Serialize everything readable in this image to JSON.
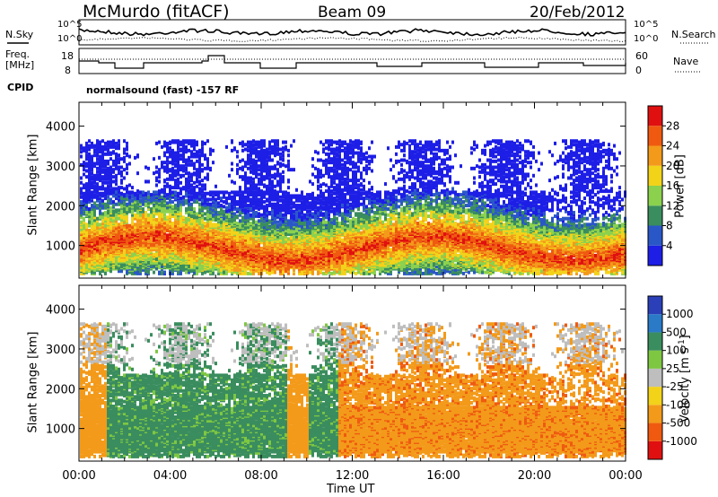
{
  "header": {
    "station": "McMurdo (fitACF)",
    "beam": "Beam 09",
    "date": "20/Feb/2012"
  },
  "top_panel": {
    "left_label": "N.Sky",
    "left_ticks": [
      "10^5",
      "10^0"
    ],
    "right_label": "N.Search",
    "right_ticks": [
      "10^5",
      "10^0"
    ]
  },
  "freq_panel": {
    "left_label_1": "Freq.",
    "left_label_2": "[MHz]",
    "left_ticks": [
      "18",
      "8"
    ],
    "right_label": "Nave",
    "right_ticks": [
      "60",
      "0"
    ]
  },
  "cpid": {
    "label": "CPID",
    "text": "normalsound (fast) -157 RF"
  },
  "colors": {
    "power": [
      "#1d1ee6",
      "#2a57c8",
      "#3a8d5e",
      "#8bd14e",
      "#f3d21a",
      "#f39a1a",
      "#ef5a10",
      "#e01010"
    ],
    "velocity": [
      "#2a3fb8",
      "#2a7ac8",
      "#3a8d5e",
      "#7ec742",
      "#bebebe",
      "#f3d21a",
      "#f39a1a",
      "#ef5a10",
      "#e01010"
    ]
  },
  "chart_data": [
    {
      "type": "heatmap",
      "title": "",
      "ylabel": "Slant Range [km]",
      "ylim": [
        180,
        4600
      ],
      "yticks": [
        "1000",
        "2000",
        "3000",
        "4000"
      ],
      "colorbar_label": "Power [dB]",
      "colorbar_ticks": [
        "4",
        "8",
        "12",
        "16",
        "20",
        "24",
        "28"
      ]
    },
    {
      "type": "heatmap",
      "title": "",
      "ylabel": "Slant Range [km]",
      "xlabel": "Time UT",
      "ylim": [
        180,
        4600
      ],
      "yticks": [
        "1000",
        "2000",
        "3000",
        "4000"
      ],
      "xticks": [
        "00:00",
        "04:00",
        "08:00",
        "12:00",
        "16:00",
        "20:00",
        "00:00"
      ],
      "colorbar_label": "Velocity [m s",
      "colorbar_label_sup": "-1",
      "colorbar_label_end": "]",
      "colorbar_ticks": [
        "1000",
        "500",
        "100",
        "25",
        "-25",
        "-100",
        "-500",
        "-1000"
      ]
    }
  ]
}
